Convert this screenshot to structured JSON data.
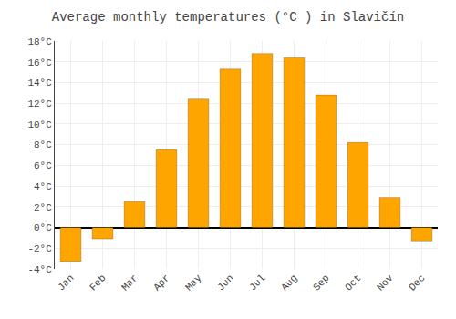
{
  "chart_data": {
    "type": "bar",
    "title": "Average monthly temperatures (°C ) in Slavičín",
    "categories": [
      "Jan",
      "Feb",
      "Mar",
      "Apr",
      "May",
      "Jun",
      "Jul",
      "Aug",
      "Sep",
      "Oct",
      "Nov",
      "Dec"
    ],
    "values": [
      -3.3,
      -1.1,
      2.5,
      7.5,
      12.4,
      15.3,
      16.8,
      16.4,
      12.8,
      8.2,
      2.9,
      -1.3
    ],
    "color": "#FFA500",
    "ylim": [
      -4,
      18
    ],
    "yticks": [
      {
        "value": -4,
        "label": "-4°C"
      },
      {
        "value": -2,
        "label": "-2°C"
      },
      {
        "value": 0,
        "label": "0°C"
      },
      {
        "value": 2,
        "label": "2°C"
      },
      {
        "value": 4,
        "label": "4°C"
      },
      {
        "value": 6,
        "label": "6°C"
      },
      {
        "value": 8,
        "label": "8°C"
      },
      {
        "value": 10,
        "label": "10°C"
      },
      {
        "value": 12,
        "label": "12°C"
      },
      {
        "value": 14,
        "label": "14°C"
      },
      {
        "value": 16,
        "label": "16°C"
      },
      {
        "value": 18,
        "label": "18°C"
      }
    ],
    "grid": true
  }
}
